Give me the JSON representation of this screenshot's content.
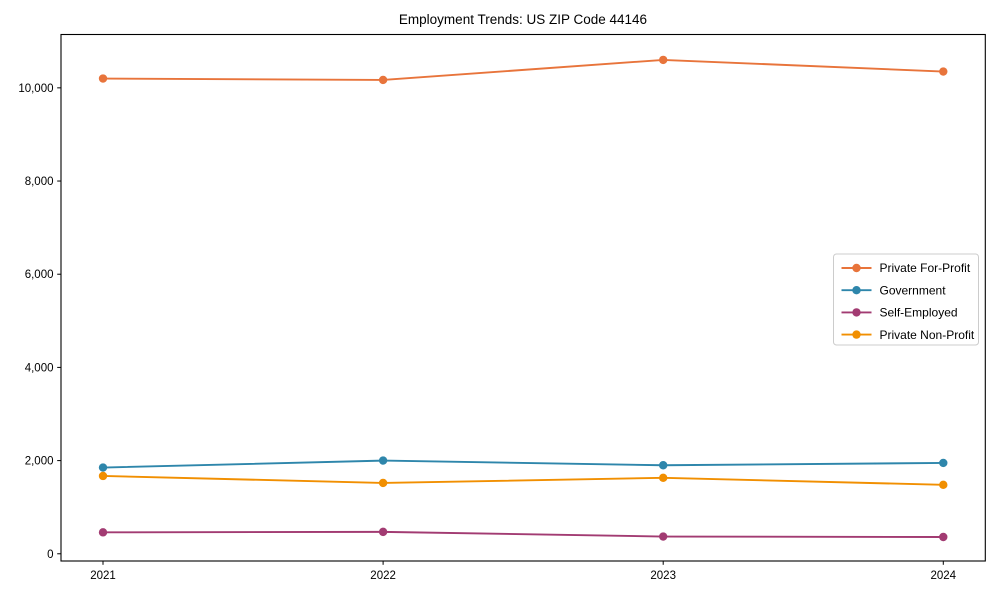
{
  "chart_data": {
    "type": "line",
    "title": "Employment Trends: US ZIP Code 44146",
    "xlabel": "",
    "ylabel": "",
    "x": [
      2021,
      2022,
      2023,
      2024
    ],
    "x_tick_labels": [
      "2021",
      "2022",
      "2023",
      "2024"
    ],
    "series": [
      {
        "name": "Private For-Profit",
        "color": "#E8743B",
        "values": [
          10200,
          10170,
          10600,
          10350
        ]
      },
      {
        "name": "Government",
        "color": "#2E86AB",
        "values": [
          1850,
          2000,
          1900,
          1950
        ]
      },
      {
        "name": "Self-Employed",
        "color": "#A23B72",
        "values": [
          460,
          470,
          370,
          360
        ]
      },
      {
        "name": "Private Non-Profit",
        "color": "#F18F01",
        "values": [
          1670,
          1520,
          1630,
          1480
        ]
      }
    ],
    "yticks": [
      {
        "value": 0,
        "label": "0"
      },
      {
        "value": 2000,
        "label": "2,000"
      },
      {
        "value": 4000,
        "label": "4,000"
      },
      {
        "value": 6000,
        "label": "6,000"
      },
      {
        "value": 8000,
        "label": "8,000"
      },
      {
        "value": 10000,
        "label": "10,000"
      }
    ],
    "xlim": [
      2020.85,
      2024.15
    ],
    "ylim": [
      -155,
      11145
    ],
    "grid": false,
    "marker": "circle",
    "legend_position": "center-right",
    "axis_color": "#000000",
    "legend_border_color": "#cccccc",
    "background_color": "#ffffff"
  }
}
